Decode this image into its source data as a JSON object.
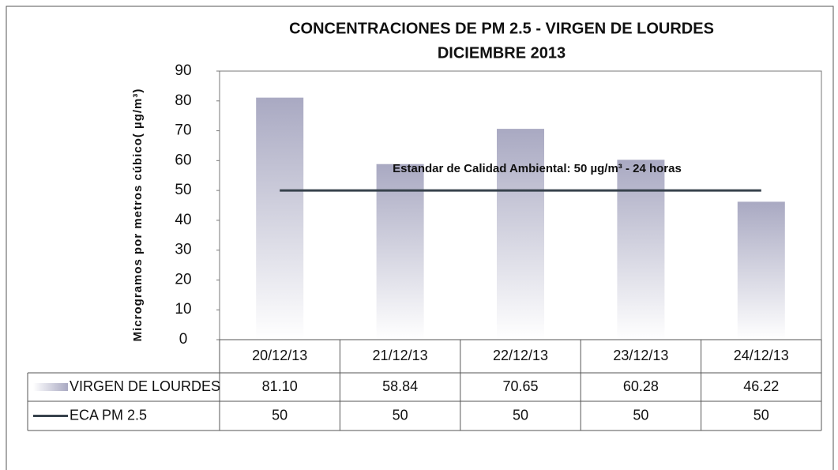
{
  "chart_data": {
    "type": "bar",
    "title": "CONCENTRACIONES DE PM 2.5  - VIRGEN DE LOURDES",
    "subtitle": "DICIEMBRE 2013",
    "y_label": "Microgramos por metros cúbico( µg/m³)",
    "annotation": "Estandar de Calidad Ambiental: 50 µg/m³  - 24 horas",
    "categories": [
      "20/12/13",
      "21/12/13",
      "22/12/13",
      "23/12/13",
      "24/12/13"
    ],
    "series": [
      {
        "name": "VIRGEN DE LOURDES",
        "type": "bar",
        "color": "#a9a9c2",
        "values": [
          81.1,
          58.84,
          70.65,
          60.28,
          46.22
        ],
        "value_labels": [
          "81.10",
          "58.84",
          "70.65",
          "60.28",
          "46.22"
        ]
      },
      {
        "name": "ECA PM 2.5",
        "type": "line",
        "color": "#37424c",
        "values": [
          50,
          50,
          50,
          50,
          50
        ]
      }
    ],
    "ylim": [
      0,
      90
    ],
    "yticks": [
      0,
      10,
      20,
      30,
      40,
      50,
      60,
      70,
      80,
      90
    ],
    "grid": false
  }
}
